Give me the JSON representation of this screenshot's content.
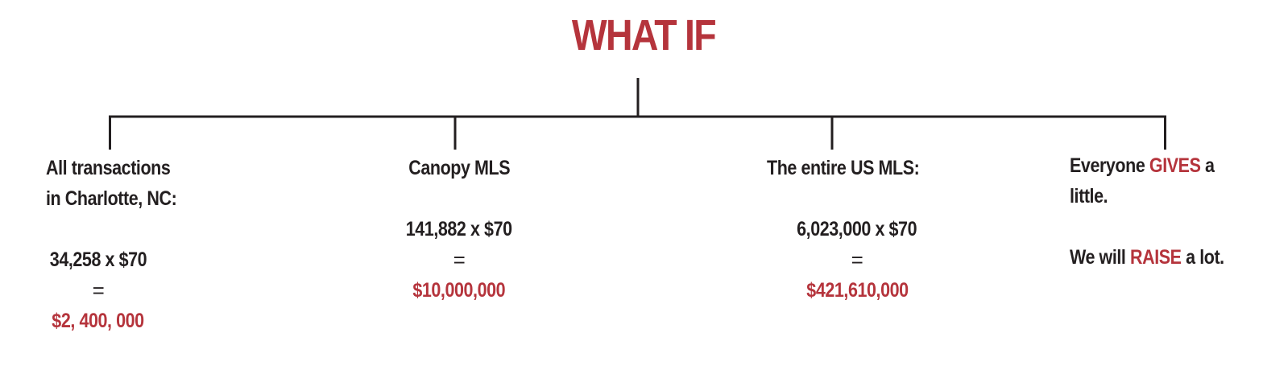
{
  "title": "WHAT IF",
  "branches": [
    {
      "heading_line1": "All transactions",
      "heading_line2": "in Charlotte, NC:",
      "formula": "34,258 x $70",
      "equals": "=",
      "result": "$2, 400, 000"
    },
    {
      "heading": "Canopy MLS",
      "formula": "141,882 x $70",
      "equals": "=",
      "result": "$10,000,000"
    },
    {
      "heading": "The entire US MLS:",
      "formula": "6,023,000 x $70",
      "equals": "=",
      "result": "$421,610,000"
    },
    {
      "line1_pre": "Everyone ",
      "line1_emph": "GIVES",
      "line1_post": " a",
      "line2": "little.",
      "line3_pre": "We will ",
      "line3_emph": "RAISE",
      "line3_post": " a lot."
    }
  ],
  "colors": {
    "accent": "#b5343c",
    "text": "#231f20"
  }
}
